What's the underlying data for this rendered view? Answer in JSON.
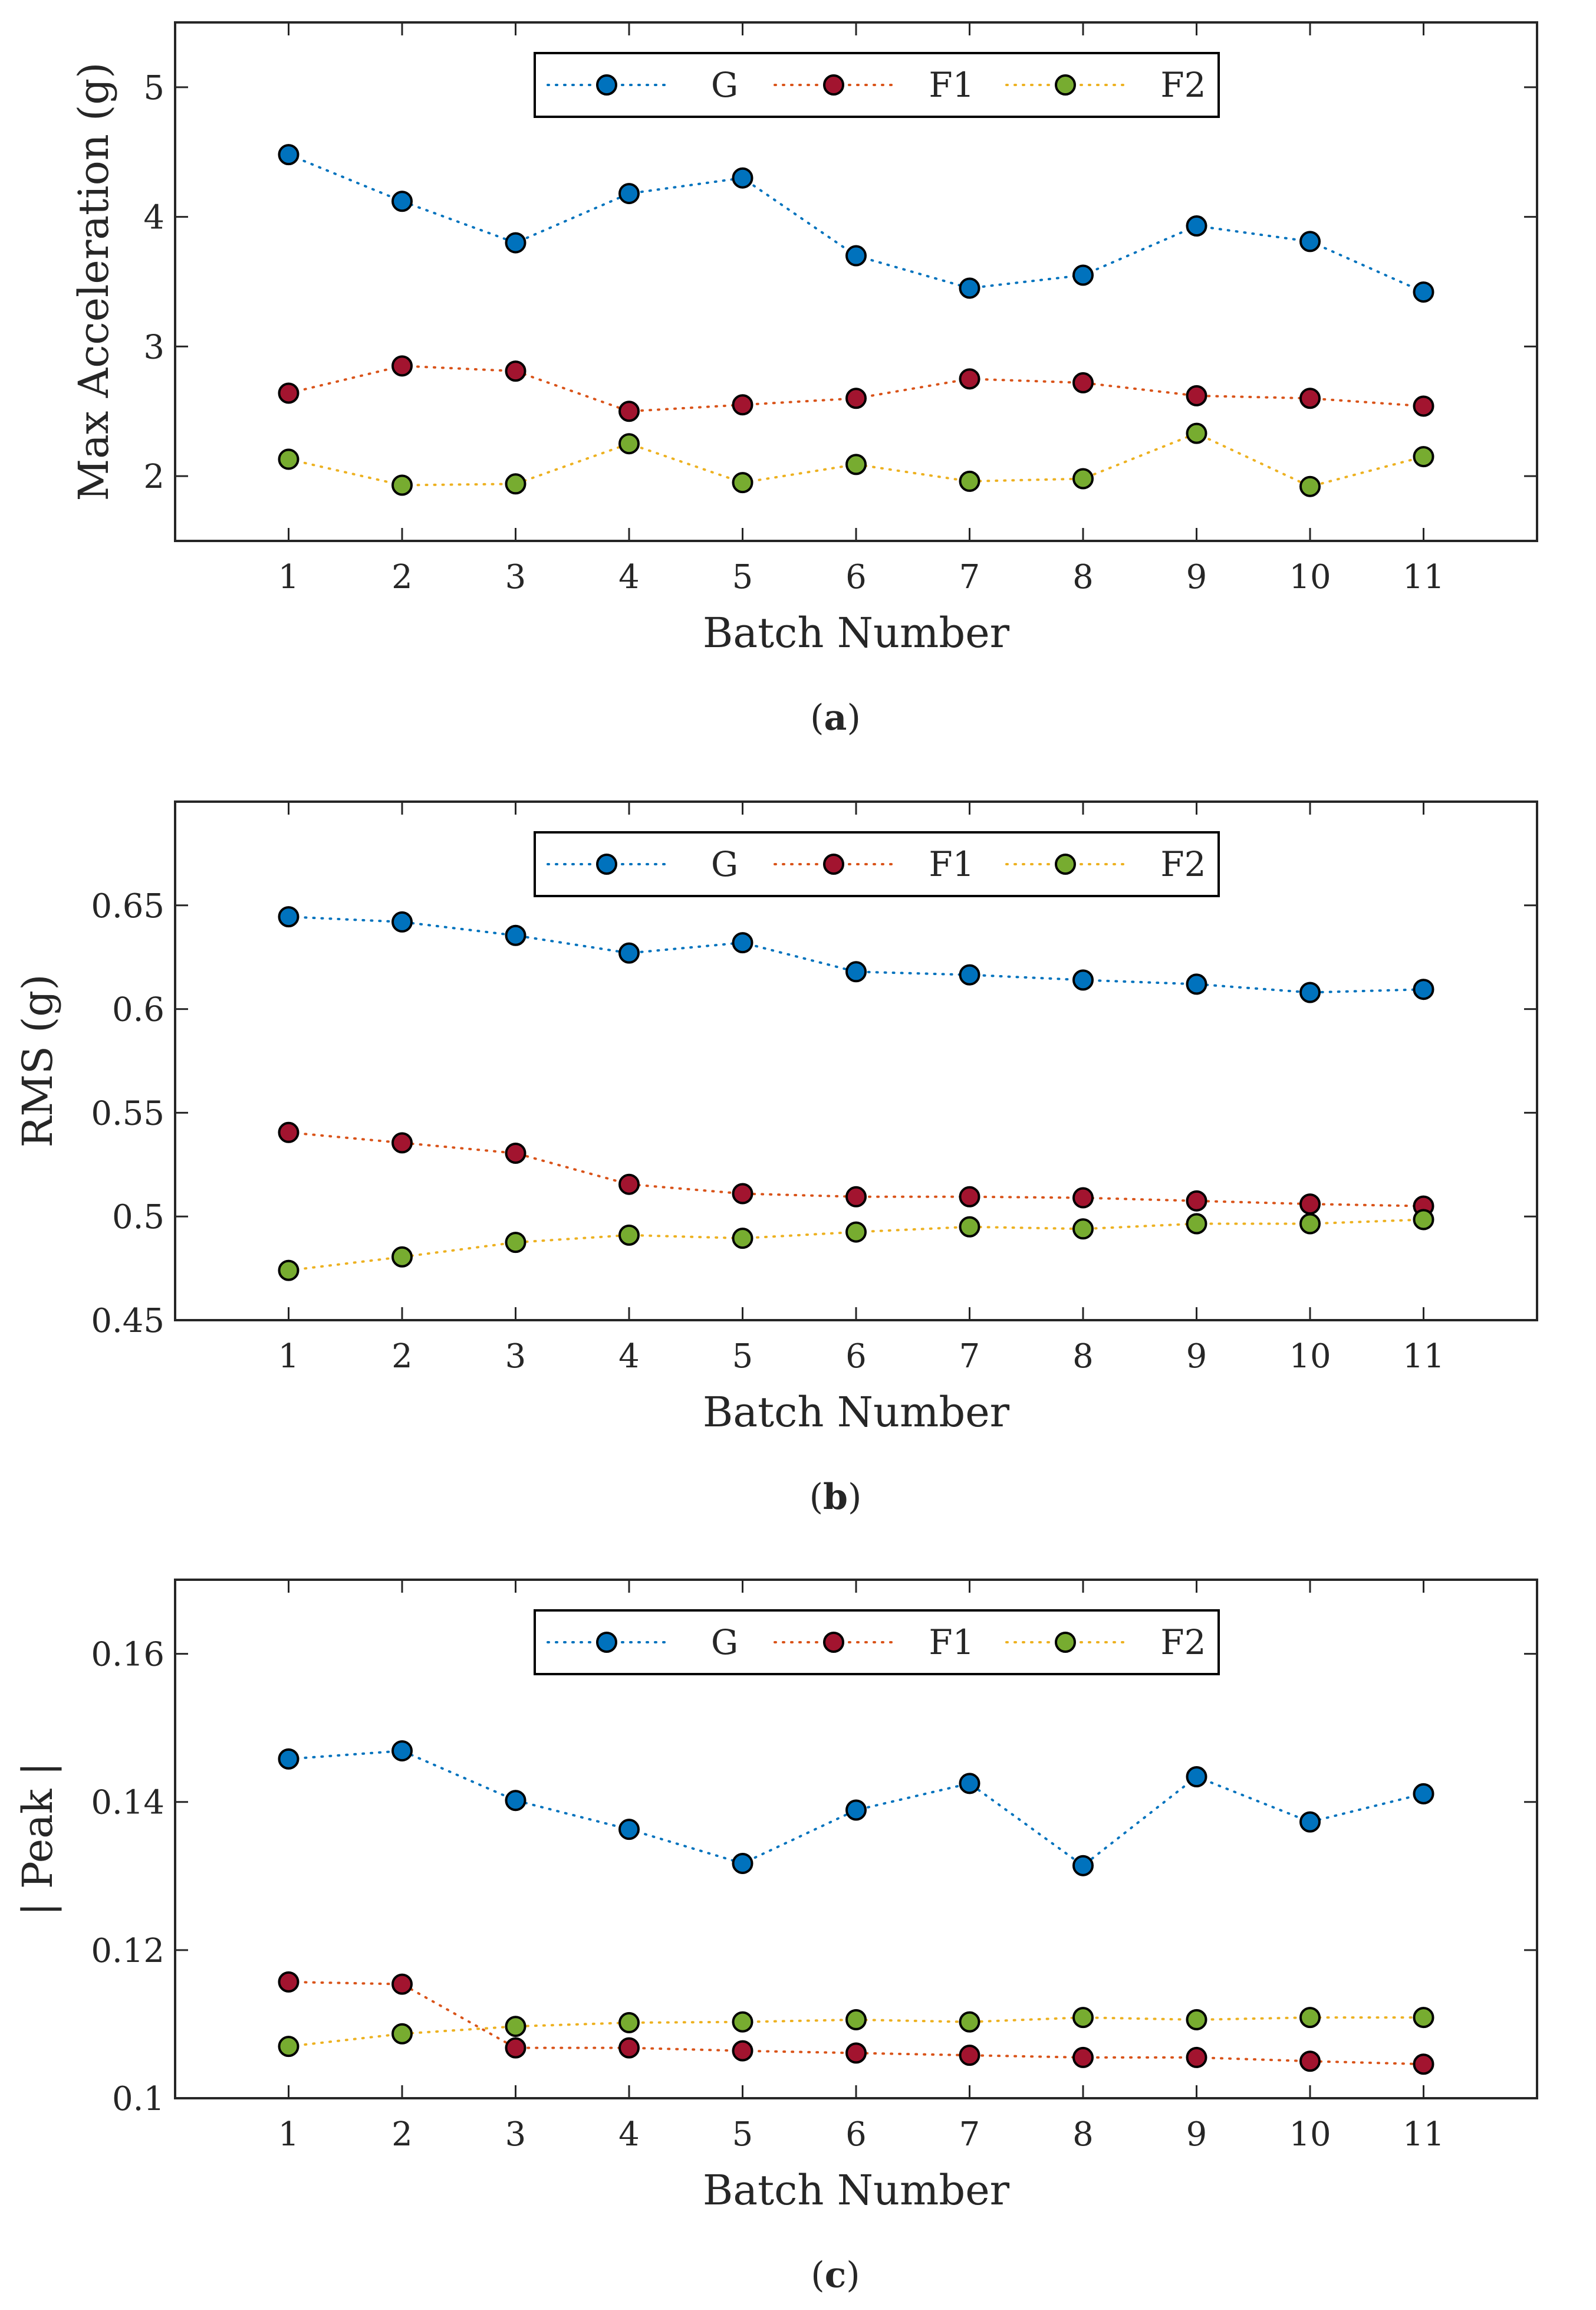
{
  "colors": {
    "G": "#0072BD",
    "F1": "#A2142F",
    "F2": "#77AC30",
    "G_line": "#0072BD",
    "F1_line": "#D95319",
    "F2_line": "#EDB120",
    "axis": "#262626"
  },
  "chart_data": [
    {
      "type": "line",
      "panel": "a",
      "caption_open": "(",
      "caption_letter": "a",
      "caption_close": ")",
      "xlabel": "Batch Number",
      "ylabel": "Max Acceleration (g)",
      "x": [
        1,
        2,
        3,
        4,
        5,
        6,
        7,
        8,
        9,
        10,
        11
      ],
      "xlim": [
        0,
        12
      ],
      "ylim": [
        1.5,
        5.5
      ],
      "yticks": [
        2,
        3,
        4,
        5
      ],
      "ytick_labels": [
        "2",
        "3",
        "4",
        "5"
      ],
      "legend": [
        "G",
        "F1",
        "F2"
      ],
      "legend_position": "top-center",
      "series": [
        {
          "name": "G",
          "values": [
            4.48,
            4.12,
            3.8,
            4.18,
            4.3,
            3.7,
            3.45,
            3.55,
            3.93,
            3.81,
            3.42
          ]
        },
        {
          "name": "F1",
          "values": [
            2.64,
            2.85,
            2.81,
            2.5,
            2.55,
            2.6,
            2.75,
            2.72,
            2.62,
            2.6,
            2.54
          ]
        },
        {
          "name": "F2",
          "values": [
            2.13,
            1.93,
            1.94,
            2.25,
            1.95,
            2.09,
            1.96,
            1.98,
            2.33,
            1.92,
            2.15
          ]
        }
      ]
    },
    {
      "type": "line",
      "panel": "b",
      "caption_open": "(",
      "caption_letter": "b",
      "caption_close": ")",
      "xlabel": "Batch Number",
      "ylabel": "RMS (g)",
      "x": [
        1,
        2,
        3,
        4,
        5,
        6,
        7,
        8,
        9,
        10,
        11
      ],
      "xlim": [
        0,
        12
      ],
      "ylim": [
        0.45,
        0.7
      ],
      "yticks": [
        0.45,
        0.5,
        0.55,
        0.6,
        0.65
      ],
      "ytick_labels": [
        "0.45",
        "0.5",
        "0.55",
        "0.6",
        "0.65"
      ],
      "legend": [
        "G",
        "F1",
        "F2"
      ],
      "legend_position": "top-center",
      "series": [
        {
          "name": "G",
          "values": [
            0.6445,
            0.642,
            0.6355,
            0.627,
            0.632,
            0.618,
            0.6165,
            0.614,
            0.612,
            0.608,
            0.6095
          ]
        },
        {
          "name": "F1",
          "values": [
            0.5405,
            0.5355,
            0.5305,
            0.5155,
            0.511,
            0.5095,
            0.5095,
            0.509,
            0.5075,
            0.506,
            0.505
          ]
        },
        {
          "name": "F2",
          "values": [
            0.474,
            0.4805,
            0.4875,
            0.491,
            0.4895,
            0.4925,
            0.495,
            0.494,
            0.4965,
            0.4965,
            0.4985
          ]
        }
      ]
    },
    {
      "type": "line",
      "panel": "c",
      "caption_open": "(",
      "caption_letter": "c",
      "caption_close": ")",
      "xlabel": "Batch Number",
      "ylabel": "| Peak |",
      "x": [
        1,
        2,
        3,
        4,
        5,
        6,
        7,
        8,
        9,
        10,
        11
      ],
      "xlim": [
        0,
        12
      ],
      "ylim": [
        0.1,
        0.17
      ],
      "yticks": [
        0.1,
        0.12,
        0.14,
        0.16
      ],
      "ytick_labels": [
        "0.1",
        "0.12",
        "0.14",
        "0.16"
      ],
      "legend": [
        "G",
        "F1",
        "F2"
      ],
      "legend_position": "top-center",
      "series": [
        {
          "name": "G",
          "values": [
            0.1458,
            0.1469,
            0.1402,
            0.1363,
            0.1317,
            0.1389,
            0.1425,
            0.1314,
            0.1434,
            0.1373,
            0.1411
          ]
        },
        {
          "name": "F1",
          "values": [
            0.1157,
            0.1154,
            0.1068,
            0.1068,
            0.1064,
            0.1061,
            0.1058,
            0.1055,
            0.1055,
            0.105,
            0.1046
          ]
        },
        {
          "name": "F2",
          "values": [
            0.107,
            0.1087,
            0.1097,
            0.1102,
            0.1103,
            0.1106,
            0.1103,
            0.1109,
            0.1106,
            0.1109,
            0.1109
          ]
        }
      ]
    }
  ]
}
